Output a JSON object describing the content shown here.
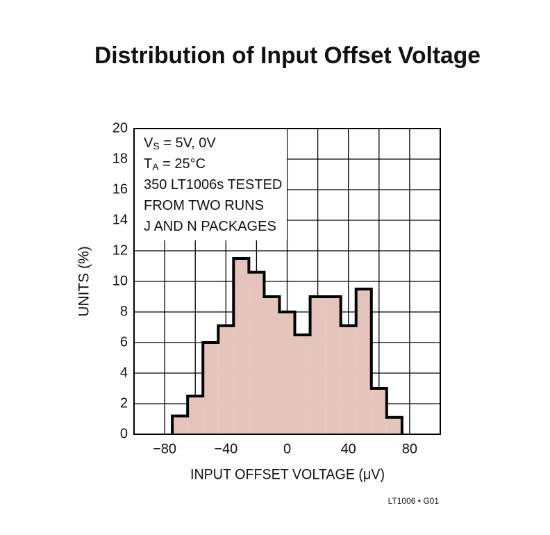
{
  "chart_data": {
    "type": "histogram",
    "title": "Distribution of Input Offset Voltage",
    "xlabel": "INPUT OFFSET VOLTAGE (μV)",
    "ylabel": "UNITS (%)",
    "footnote": "LT1006 • G01",
    "annotation_lines": [
      [
        "V",
        "S",
        " = 5V, 0V"
      ],
      [
        "T",
        "A",
        " = 25°C"
      ],
      [
        "350 LT1006s TESTED"
      ],
      [
        "FROM TWO RUNS"
      ],
      [
        "J AND N PACKAGES"
      ]
    ],
    "bins": [
      -75,
      -65,
      -55,
      -45,
      -35,
      -25,
      -15,
      -5,
      5,
      15,
      25,
      35,
      45,
      55,
      65,
      75
    ],
    "values": [
      1.2,
      2.5,
      6.0,
      7.1,
      11.5,
      10.6,
      9.0,
      8.0,
      6.5,
      9.0,
      9.0,
      7.1,
      9.5,
      3.0,
      1.1
    ],
    "color": "#e6c4be",
    "edge_color": "#000000",
    "xlim": [
      -100,
      100
    ],
    "ylim": [
      0,
      20
    ],
    "xticks": [
      {
        "value": -80,
        "label": "−80"
      },
      {
        "value": -40,
        "label": "−40"
      },
      0,
      40,
      80
    ],
    "xgrid": [
      -100,
      -80,
      -60,
      -40,
      -20,
      0,
      20,
      40,
      60,
      80,
      100
    ],
    "yticks": [
      0,
      2,
      4,
      6,
      8,
      10,
      12,
      14,
      16,
      18,
      20
    ],
    "grid": true
  }
}
